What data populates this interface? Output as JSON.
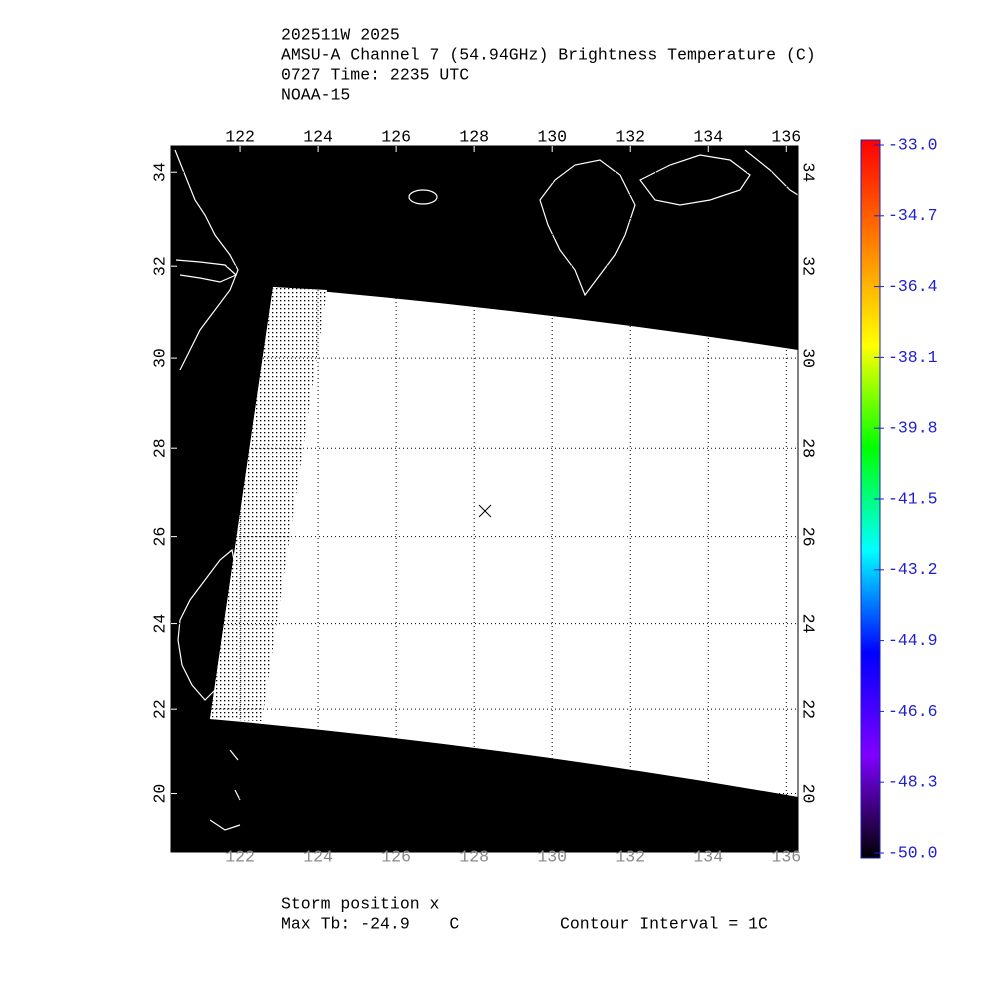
{
  "header": {
    "lines": [
      "202511W 2025",
      "AMSU-A Channel 7 (54.94GHz) Brightness Temperature (C)",
      "0727 Time: 2235 UTC",
      "NOAA-15"
    ]
  },
  "map": {
    "projection": "mercator",
    "xlim": [
      120.23,
      136.3
    ],
    "ylim": [
      18.6,
      34.55
    ],
    "lon_ticks": [
      122,
      124,
      126,
      128,
      130,
      132,
      134,
      136
    ],
    "lat_ticks": [
      20,
      22,
      24,
      26,
      28,
      30,
      32,
      34
    ],
    "grid": true
  },
  "colorbar": {
    "range": [
      -50,
      -33
    ],
    "ticks": [
      {
        "value": -33,
        "label": "-33.0"
      },
      -34.7,
      -36.4,
      -38.1,
      -39.8,
      -41.5,
      -43.2,
      -44.9,
      -46.6,
      -48.3,
      {
        "value": -50,
        "label": "-50.0"
      }
    ],
    "colors": [
      "#ff0000",
      "#ff7f00",
      "#ffff00",
      "#00ff00",
      "#00ffff",
      "#0000ff",
      "#7f00ff",
      "#000000"
    ]
  },
  "footer": {
    "storm": "Storm position x",
    "max_tb": "Max Tb: -24.9    C",
    "contour": "Contour Interval = 1C"
  }
}
